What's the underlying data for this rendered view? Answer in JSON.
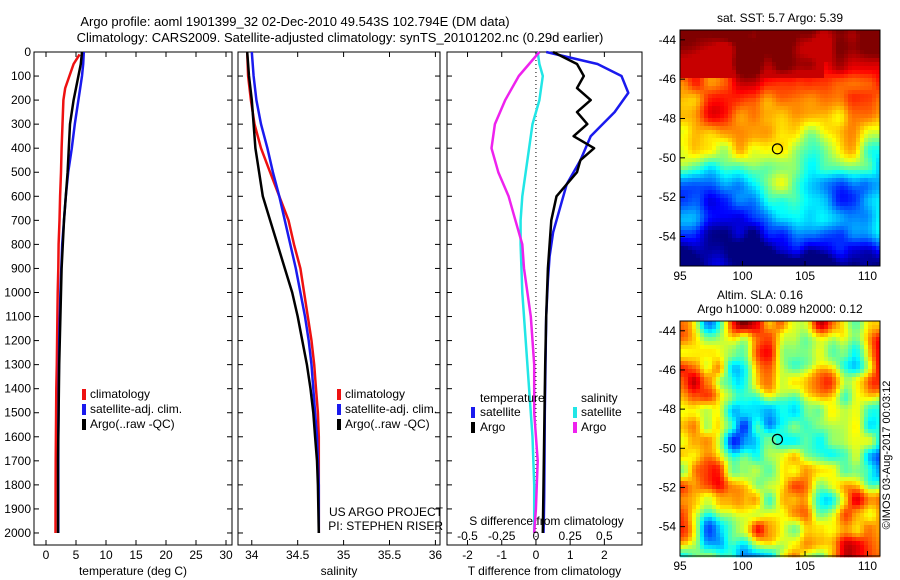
{
  "title_line1": "Argo profile: aoml 1901399_32 02-Dec-2010 49.543S 102.794E (DM data)",
  "title_line2": "Climatology: CARS2009. Satellite-adjusted climatology: synTS_20101202.nc (0.29d earlier)",
  "side_stamp": "©IMOS 03-Aug-2017 00:03:12",
  "colors": {
    "red": "#ee1111",
    "blue": "#1a1aee",
    "black": "#000000",
    "cyan": "#22e6e6",
    "magenta": "#ee22ee"
  },
  "chart_data": [
    {
      "id": "temperature",
      "type": "line",
      "xlabel": "temperature (deg C)",
      "xlim": [
        -2,
        31
      ],
      "ylim": [
        0,
        2050
      ],
      "y_inverted": true,
      "xticks": [
        0,
        5,
        10,
        15,
        20,
        25,
        30
      ],
      "xticklabels": [
        "0",
        "5",
        "10",
        "15",
        "20",
        "25",
        "30"
      ],
      "yticks": [
        0,
        100,
        200,
        300,
        400,
        500,
        600,
        700,
        800,
        900,
        1000,
        1100,
        1200,
        1300,
        1400,
        1500,
        1600,
        1700,
        1800,
        1900,
        2000
      ],
      "legend": {
        "position": "bottom-center",
        "entries": [
          {
            "label": "climatology",
            "color": "#ee1111"
          },
          {
            "label": "satellite-adj. clim.",
            "color": "#1a1aee"
          },
          {
            "label": "Argo(..raw -QC)",
            "color": "#000000"
          }
        ]
      },
      "series": [
        {
          "name": "climatology",
          "color": "#ee1111",
          "x": [
            5.6,
            4.6,
            3.9,
            3.2,
            2.9,
            2.75,
            2.6,
            2.5,
            2.35,
            2.25,
            2.1,
            2.05,
            1.95,
            1.9,
            1.85,
            1.8,
            1.72,
            1.68,
            1.65,
            1.62,
            1.6,
            1.58
          ],
          "y": [
            10,
            50,
            100,
            150,
            200,
            300,
            400,
            500,
            600,
            700,
            800,
            900,
            1000,
            1100,
            1200,
            1300,
            1400,
            1500,
            1600,
            1700,
            1800,
            2000
          ]
        },
        {
          "name": "satellite-adj. clim.",
          "color": "#1a1aee",
          "x": [
            6.3,
            6.2,
            6.0,
            5.7,
            5.4,
            4.8,
            4.3,
            3.7,
            3.3,
            3.0,
            2.7,
            2.55,
            2.4,
            2.3,
            2.2,
            2.15,
            2.1,
            2.08,
            2.05,
            2.05,
            2.05
          ],
          "y": [
            0,
            50,
            100,
            150,
            200,
            300,
            400,
            500,
            600,
            700,
            800,
            900,
            1000,
            1100,
            1200,
            1300,
            1400,
            1500,
            1600,
            1700,
            2000
          ]
        },
        {
          "name": "Argo",
          "color": "#000000",
          "x": [
            6.0,
            5.8,
            5.4,
            5.0,
            4.6,
            4.0,
            3.8,
            3.6,
            3.3,
            3.0,
            2.8,
            2.6,
            2.5,
            2.4,
            2.3,
            2.2,
            2.15,
            2.1,
            2.05,
            2.0,
            2.0
          ],
          "y": [
            0,
            50,
            100,
            150,
            200,
            300,
            400,
            500,
            600,
            700,
            800,
            900,
            1000,
            1100,
            1200,
            1300,
            1400,
            1500,
            1600,
            1700,
            2000
          ]
        }
      ]
    },
    {
      "id": "salinity",
      "type": "line",
      "xlabel": "salinity",
      "xlim": [
        33.85,
        36.05
      ],
      "ylim": [
        0,
        2050
      ],
      "y_inverted": true,
      "xticks": [
        34,
        34.5,
        35,
        35.5,
        36
      ],
      "xticklabels": [
        "34",
        "34.5",
        "35",
        "35.5",
        "36"
      ],
      "legend": {
        "position": "bottom-center",
        "entries": [
          {
            "label": "climatology",
            "color": "#ee1111"
          },
          {
            "label": "satellite-adj. clim.",
            "color": "#1a1aee"
          },
          {
            "label": "Argo(..raw -QC)",
            "color": "#000000"
          }
        ]
      },
      "annotations": [
        "US ARGO PROJECT",
        "PI: STEPHEN RISER"
      ],
      "series": [
        {
          "name": "climatology",
          "color": "#ee1111",
          "x": [
            33.95,
            33.96,
            33.99,
            34.03,
            34.1,
            34.2,
            34.3,
            34.4,
            34.46,
            34.53,
            34.57,
            34.61,
            34.65,
            34.68,
            34.7,
            34.72,
            34.73,
            34.73,
            34.73,
            34.73
          ],
          "y": [
            0,
            100,
            200,
            300,
            400,
            500,
            600,
            700,
            800,
            900,
            1000,
            1100,
            1200,
            1300,
            1400,
            1500,
            1600,
            1700,
            1800,
            2000
          ]
        },
        {
          "name": "satellite-adj. clim.",
          "color": "#1a1aee",
          "x": [
            34.0,
            34.02,
            34.05,
            34.1,
            34.17,
            34.23,
            34.3,
            34.36,
            34.42,
            34.48,
            34.53,
            34.58,
            34.62,
            34.65,
            34.67,
            34.69,
            34.71,
            34.72,
            34.73,
            34.73
          ],
          "y": [
            0,
            100,
            200,
            300,
            400,
            500,
            600,
            700,
            800,
            900,
            1000,
            1100,
            1200,
            1300,
            1400,
            1500,
            1600,
            1700,
            1800,
            2000
          ]
        },
        {
          "name": "Argo",
          "color": "#000000",
          "x": [
            33.95,
            33.97,
            34.0,
            34.02,
            34.04,
            34.08,
            34.12,
            34.2,
            34.28,
            34.36,
            34.44,
            34.5,
            34.55,
            34.6,
            34.64,
            34.67,
            34.69,
            34.71,
            34.72,
            34.73
          ],
          "y": [
            0,
            100,
            200,
            300,
            400,
            500,
            600,
            700,
            800,
            900,
            1000,
            1100,
            1200,
            1300,
            1400,
            1500,
            1600,
            1700,
            1800,
            2000
          ]
        }
      ]
    },
    {
      "id": "differences",
      "type": "line",
      "xlabel": "T difference from climatology",
      "xlabel_top": "S difference from climatology",
      "xlim": [
        -2.6,
        3.1
      ],
      "ylim": [
        0,
        2050
      ],
      "y_inverted": true,
      "zero_line": "dotted",
      "xticks": [
        -2,
        -1,
        0,
        1,
        2
      ],
      "xticklabels": [
        "-2",
        "-1",
        "0",
        "1",
        "2"
      ],
      "xticks_sal": [
        -0.5,
        -0.25,
        0,
        0.25,
        0.5
      ],
      "xticklabels_sal": [
        "-0.5",
        "-0.25",
        "0",
        "0.25",
        "0.5"
      ],
      "legend": {
        "position": "bottom",
        "groups": [
          {
            "title": "temperature",
            "entries": [
              {
                "label": "satellite",
                "color": "#1a1aee"
              },
              {
                "label": "Argo",
                "color": "#000000"
              }
            ]
          },
          {
            "title": "salinity",
            "entries": [
              {
                "label": "satellite",
                "color": "#22e6e6"
              },
              {
                "label": "Argo",
                "color": "#ee22ee"
              }
            ]
          }
        ]
      },
      "series": [
        {
          "name": "temperature satellite",
          "color": "#1a1aee",
          "x": [
            0.3,
            1.8,
            2.5,
            2.7,
            2.3,
            1.6,
            1.3,
            0.9,
            0.7,
            0.5,
            0.4,
            0.35,
            0.3,
            0.28,
            0.26,
            0.25,
            0.24,
            0.23,
            0.22
          ],
          "y": [
            0,
            50,
            100,
            170,
            250,
            350,
            450,
            550,
            650,
            750,
            850,
            950,
            1100,
            1300,
            1500,
            1700,
            1850,
            1950,
            2000
          ]
        },
        {
          "name": "temperature Argo",
          "color": "#000000",
          "x": [
            0.5,
            1.2,
            1.4,
            1.2,
            1.6,
            1.2,
            1.5,
            1.1,
            1.7,
            1.3,
            1.2,
            0.6,
            0.45,
            0.4,
            0.35,
            0.3,
            0.27,
            0.25,
            0.22,
            0.2
          ],
          "y": [
            0,
            50,
            100,
            150,
            200,
            250,
            300,
            350,
            400,
            450,
            500,
            600,
            700,
            800,
            900,
            1100,
            1300,
            1500,
            1800,
            2000
          ]
        },
        {
          "name": "salinity satellite",
          "color": "#22e6e6",
          "x": [
            0.05,
            0.1,
            0.2,
            0.1,
            -0.1,
            -0.2,
            -0.3,
            -0.4,
            -0.45,
            -0.45,
            -0.4,
            -0.3,
            -0.2,
            -0.1,
            -0.05,
            -0.05
          ],
          "y": [
            0,
            50,
            100,
            200,
            300,
            400,
            500,
            600,
            700,
            800,
            1000,
            1200,
            1400,
            1600,
            1800,
            2000
          ]
        },
        {
          "name": "salinity Argo",
          "color": "#ee22ee",
          "x": [
            0.1,
            -0.2,
            -0.5,
            -0.9,
            -1.2,
            -1.3,
            -1.1,
            -0.8,
            -0.6,
            -0.4,
            -0.35,
            -0.15,
            -0.05,
            -0.05,
            0.05,
            0.0,
            -0.05
          ],
          "y": [
            0,
            50,
            100,
            200,
            300,
            400,
            500,
            600,
            700,
            800,
            900,
            1100,
            1300,
            1500,
            1700,
            1900,
            2000
          ]
        }
      ]
    },
    {
      "id": "sst_map",
      "type": "heatmap",
      "title": "sat. SST: 5.7 Argo: 5.39",
      "xlim": [
        95,
        111
      ],
      "ylim": [
        -55.5,
        -43.5
      ],
      "xticks": [
        95,
        100,
        105,
        110
      ],
      "yticks": [
        -44,
        -46,
        -48,
        -50,
        -52,
        -54
      ],
      "marker": {
        "x": 102.794,
        "y": -49.543
      }
    },
    {
      "id": "sla_map",
      "type": "heatmap",
      "title": [
        "Altim. SLA: 0.16",
        "Argo h1000: 0.089 h2000: 0.12"
      ],
      "xlim": [
        95,
        111
      ],
      "ylim": [
        -55.5,
        -43.5
      ],
      "xticks": [
        95,
        100,
        105,
        110
      ],
      "yticks": [
        -44,
        -46,
        -48,
        -50,
        -52,
        -54
      ],
      "marker": {
        "x": 102.794,
        "y": -49.543
      }
    }
  ]
}
